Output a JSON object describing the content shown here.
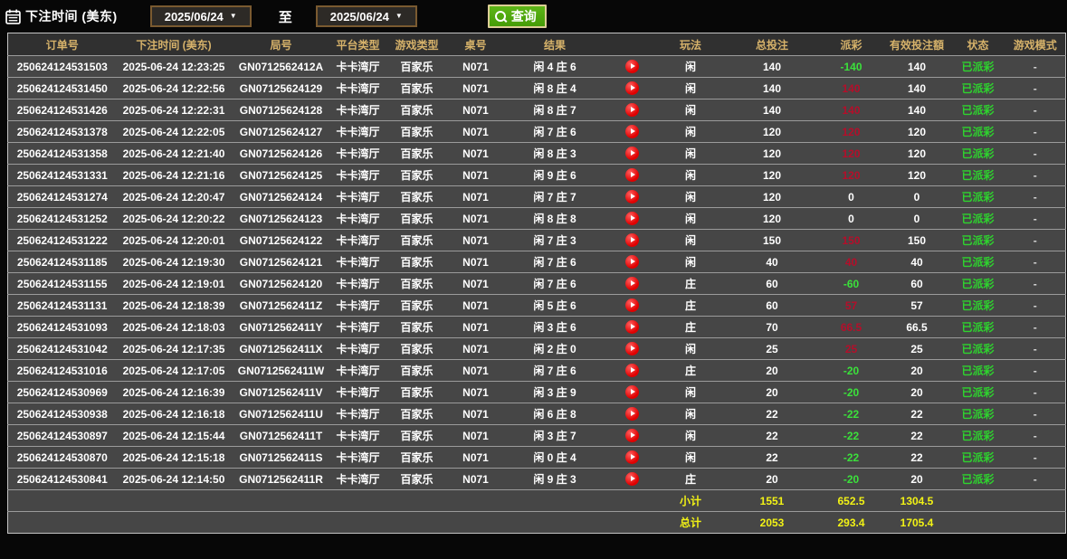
{
  "filter_bar": {
    "label": "下注时间 (美东)",
    "date_from": "2025/06/24",
    "to_label": "至",
    "date_to": "2025/06/24",
    "search_label": "查询"
  },
  "colors": {
    "header_gold": "#d6b26a",
    "win_red": "#b50e2a",
    "loss_green": "#3be13b",
    "paid_status_green": "#2ed32e",
    "summary_yellow": "#f2f215",
    "search_button_green": "#4da50c",
    "date_border_brown": "#7a5a30",
    "row_background": "#464646",
    "replay_icon_red": "#e00000"
  },
  "table": {
    "columns": [
      "订单号",
      "下注时间 (美东)",
      "局号",
      "平台类型",
      "游戏类型",
      "桌号",
      "结果",
      "",
      "玩法",
      "总投注",
      "派彩",
      "有效投注額",
      "状态",
      "游戏模式"
    ],
    "rows": [
      {
        "order": "250624124531503",
        "time": "2025-06-24 12:23:25",
        "round": "GN0712562412A",
        "platform": "卡卡湾厅",
        "game": "百家乐",
        "table_no": "N071",
        "result": "闲 4 庄 6",
        "play": "闲",
        "total_bet": "140",
        "payout": "-140",
        "payout_color": "neg",
        "valid_bet": "140",
        "status": "已派彩",
        "mode": "-"
      },
      {
        "order": "250624124531450",
        "time": "2025-06-24 12:22:56",
        "round": "GN07125624129",
        "platform": "卡卡湾厅",
        "game": "百家乐",
        "table_no": "N071",
        "result": "闲 8 庄 4",
        "play": "闲",
        "total_bet": "140",
        "payout": "140",
        "payout_color": "pos",
        "valid_bet": "140",
        "status": "已派彩",
        "mode": "-"
      },
      {
        "order": "250624124531426",
        "time": "2025-06-24 12:22:31",
        "round": "GN07125624128",
        "platform": "卡卡湾厅",
        "game": "百家乐",
        "table_no": "N071",
        "result": "闲 8 庄 7",
        "play": "闲",
        "total_bet": "140",
        "payout": "140",
        "payout_color": "pos",
        "valid_bet": "140",
        "status": "已派彩",
        "mode": "-"
      },
      {
        "order": "250624124531378",
        "time": "2025-06-24 12:22:05",
        "round": "GN07125624127",
        "platform": "卡卡湾厅",
        "game": "百家乐",
        "table_no": "N071",
        "result": "闲 7 庄 6",
        "play": "闲",
        "total_bet": "120",
        "payout": "120",
        "payout_color": "pos",
        "valid_bet": "120",
        "status": "已派彩",
        "mode": "-"
      },
      {
        "order": "250624124531358",
        "time": "2025-06-24 12:21:40",
        "round": "GN07125624126",
        "platform": "卡卡湾厅",
        "game": "百家乐",
        "table_no": "N071",
        "result": "闲 8 庄 3",
        "play": "闲",
        "total_bet": "120",
        "payout": "120",
        "payout_color": "pos",
        "valid_bet": "120",
        "status": "已派彩",
        "mode": "-"
      },
      {
        "order": "250624124531331",
        "time": "2025-06-24 12:21:16",
        "round": "GN07125624125",
        "platform": "卡卡湾厅",
        "game": "百家乐",
        "table_no": "N071",
        "result": "闲 9 庄 6",
        "play": "闲",
        "total_bet": "120",
        "payout": "120",
        "payout_color": "pos",
        "valid_bet": "120",
        "status": "已派彩",
        "mode": "-"
      },
      {
        "order": "250624124531274",
        "time": "2025-06-24 12:20:47",
        "round": "GN07125624124",
        "platform": "卡卡湾厅",
        "game": "百家乐",
        "table_no": "N071",
        "result": "闲 7 庄 7",
        "play": "闲",
        "total_bet": "120",
        "payout": "0",
        "payout_color": "zero",
        "valid_bet": "0",
        "status": "已派彩",
        "mode": "-"
      },
      {
        "order": "250624124531252",
        "time": "2025-06-24 12:20:22",
        "round": "GN07125624123",
        "platform": "卡卡湾厅",
        "game": "百家乐",
        "table_no": "N071",
        "result": "闲 8 庄 8",
        "play": "闲",
        "total_bet": "120",
        "payout": "0",
        "payout_color": "zero",
        "valid_bet": "0",
        "status": "已派彩",
        "mode": "-"
      },
      {
        "order": "250624124531222",
        "time": "2025-06-24 12:20:01",
        "round": "GN07125624122",
        "platform": "卡卡湾厅",
        "game": "百家乐",
        "table_no": "N071",
        "result": "闲 7 庄 3",
        "play": "闲",
        "total_bet": "150",
        "payout": "150",
        "payout_color": "pos",
        "valid_bet": "150",
        "status": "已派彩",
        "mode": "-"
      },
      {
        "order": "250624124531185",
        "time": "2025-06-24 12:19:30",
        "round": "GN07125624121",
        "platform": "卡卡湾厅",
        "game": "百家乐",
        "table_no": "N071",
        "result": "闲 7 庄 6",
        "play": "闲",
        "total_bet": "40",
        "payout": "40",
        "payout_color": "pos",
        "valid_bet": "40",
        "status": "已派彩",
        "mode": "-"
      },
      {
        "order": "250624124531155",
        "time": "2025-06-24 12:19:01",
        "round": "GN07125624120",
        "platform": "卡卡湾厅",
        "game": "百家乐",
        "table_no": "N071",
        "result": "闲 7 庄 6",
        "play": "庄",
        "total_bet": "60",
        "payout": "-60",
        "payout_color": "neg",
        "valid_bet": "60",
        "status": "已派彩",
        "mode": "-"
      },
      {
        "order": "250624124531131",
        "time": "2025-06-24 12:18:39",
        "round": "GN0712562411Z",
        "platform": "卡卡湾厅",
        "game": "百家乐",
        "table_no": "N071",
        "result": "闲 5 庄 6",
        "play": "庄",
        "total_bet": "60",
        "payout": "57",
        "payout_color": "pos",
        "valid_bet": "57",
        "status": "已派彩",
        "mode": "-"
      },
      {
        "order": "250624124531093",
        "time": "2025-06-24 12:18:03",
        "round": "GN0712562411Y",
        "platform": "卡卡湾厅",
        "game": "百家乐",
        "table_no": "N071",
        "result": "闲 3 庄 6",
        "play": "庄",
        "total_bet": "70",
        "payout": "66.5",
        "payout_color": "pos",
        "valid_bet": "66.5",
        "status": "已派彩",
        "mode": "-"
      },
      {
        "order": "250624124531042",
        "time": "2025-06-24 12:17:35",
        "round": "GN0712562411X",
        "platform": "卡卡湾厅",
        "game": "百家乐",
        "table_no": "N071",
        "result": "闲 2 庄 0",
        "play": "闲",
        "total_bet": "25",
        "payout": "25",
        "payout_color": "pos",
        "valid_bet": "25",
        "status": "已派彩",
        "mode": "-"
      },
      {
        "order": "250624124531016",
        "time": "2025-06-24 12:17:05",
        "round": "GN0712562411W",
        "platform": "卡卡湾厅",
        "game": "百家乐",
        "table_no": "N071",
        "result": "闲 7 庄 6",
        "play": "庄",
        "total_bet": "20",
        "payout": "-20",
        "payout_color": "neg",
        "valid_bet": "20",
        "status": "已派彩",
        "mode": "-"
      },
      {
        "order": "250624124530969",
        "time": "2025-06-24 12:16:39",
        "round": "GN0712562411V",
        "platform": "卡卡湾厅",
        "game": "百家乐",
        "table_no": "N071",
        "result": "闲 3 庄 9",
        "play": "闲",
        "total_bet": "20",
        "payout": "-20",
        "payout_color": "neg",
        "valid_bet": "20",
        "status": "已派彩",
        "mode": "-"
      },
      {
        "order": "250624124530938",
        "time": "2025-06-24 12:16:18",
        "round": "GN0712562411U",
        "platform": "卡卡湾厅",
        "game": "百家乐",
        "table_no": "N071",
        "result": "闲 6 庄 8",
        "play": "闲",
        "total_bet": "22",
        "payout": "-22",
        "payout_color": "neg",
        "valid_bet": "22",
        "status": "已派彩",
        "mode": "-"
      },
      {
        "order": "250624124530897",
        "time": "2025-06-24 12:15:44",
        "round": "GN0712562411T",
        "platform": "卡卡湾厅",
        "game": "百家乐",
        "table_no": "N071",
        "result": "闲 3 庄 7",
        "play": "闲",
        "total_bet": "22",
        "payout": "-22",
        "payout_color": "neg",
        "valid_bet": "22",
        "status": "已派彩",
        "mode": "-"
      },
      {
        "order": "250624124530870",
        "time": "2025-06-24 12:15:18",
        "round": "GN0712562411S",
        "platform": "卡卡湾厅",
        "game": "百家乐",
        "table_no": "N071",
        "result": "闲 0 庄 4",
        "play": "闲",
        "total_bet": "22",
        "payout": "-22",
        "payout_color": "neg",
        "valid_bet": "22",
        "status": "已派彩",
        "mode": "-"
      },
      {
        "order": "250624124530841",
        "time": "2025-06-24 12:14:50",
        "round": "GN0712562411R",
        "platform": "卡卡湾厅",
        "game": "百家乐",
        "table_no": "N071",
        "result": "闲 9 庄 3",
        "play": "庄",
        "total_bet": "20",
        "payout": "-20",
        "payout_color": "neg",
        "valid_bet": "20",
        "status": "已派彩",
        "mode": "-"
      }
    ],
    "subtotal": {
      "label": "小计",
      "total_bet": "1551",
      "payout": "652.5",
      "valid_bet": "1304.5"
    },
    "total": {
      "label": "总计",
      "total_bet": "2053",
      "payout": "293.4",
      "valid_bet": "1705.4"
    }
  }
}
